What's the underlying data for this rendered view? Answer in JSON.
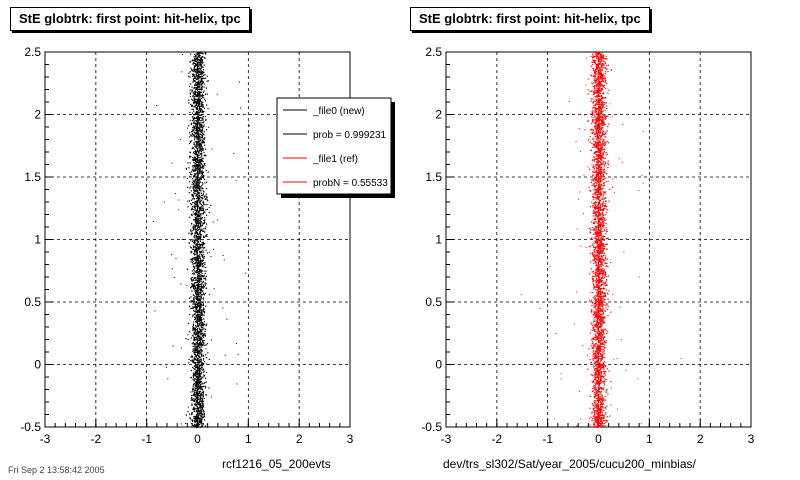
{
  "panels": [
    {
      "title": "StE globtrk: first point: hit-helix, tpc",
      "footer": "rcf1216_05_200evts",
      "color": "#000000"
    },
    {
      "title": "StE globtrk: first point: hit-helix, tpc",
      "footer": "dev/trs_sl302/Sat/year_2005/cucu200_minbias/",
      "color": "#ff0000"
    }
  ],
  "legend": {
    "entries": [
      {
        "label": "_file0 (new)",
        "color": "#000000"
      },
      {
        "label": "prob = 0.999231",
        "color": "#000000"
      },
      {
        "label": "_file1 (ref)",
        "color": "#ff0000"
      },
      {
        "label": "probN = 0.55533",
        "color": "#ff0000"
      }
    ]
  },
  "timestamp": "Fri Sep 2 13:58:42 2005",
  "chart_data": [
    {
      "type": "scatter",
      "title": "StE globtrk: first point: hit-helix, tpc",
      "xlabel": "rcf1216_05_200evts",
      "ylabel": "",
      "xlim": [
        -3,
        3
      ],
      "ylim": [
        -0.5,
        2.5
      ],
      "x_ticks": [
        "-3",
        "-2",
        "-1",
        "0",
        "1",
        "2",
        "3"
      ],
      "y_ticks": [
        "-0.5",
        "0",
        "0.5",
        "1",
        "1.5",
        "2",
        "2.5"
      ],
      "grid": true,
      "legend_position": "top-right",
      "series": [
        {
          "name": "_file0 (new)",
          "color": "#000000",
          "x_center": 0.0,
          "x_core_width": 0.25,
          "y_range": [
            -0.5,
            2.5
          ]
        }
      ]
    },
    {
      "type": "scatter",
      "title": "StE globtrk: first point: hit-helix, tpc",
      "xlabel": "dev/trs_sl302/Sat/year_2005/cucu200_minbias/",
      "ylabel": "",
      "xlim": [
        -3,
        3
      ],
      "ylim": [
        -0.5,
        2.5
      ],
      "x_ticks": [
        "-3",
        "-2",
        "-1",
        "0",
        "1",
        "2",
        "3"
      ],
      "y_ticks": [
        "-0.5",
        "0",
        "0.5",
        "1",
        "1.5",
        "2",
        "2.5"
      ],
      "grid": true,
      "series": [
        {
          "name": "_file1 (ref)",
          "color": "#ff0000",
          "x_center": 0.0,
          "x_core_width": 0.25,
          "y_range": [
            -0.5,
            2.5
          ]
        }
      ]
    }
  ]
}
